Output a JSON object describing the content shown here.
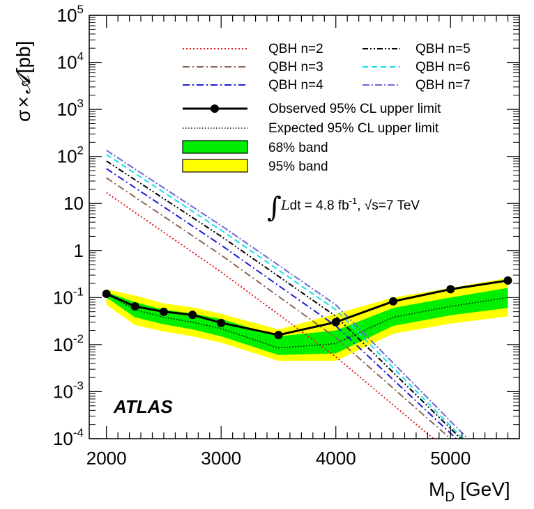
{
  "chart_data": {
    "type": "line",
    "x_label": "M",
    "x_label_sub": "D",
    "x_label_unit": "[GeV]",
    "y_label_sigma": "σ",
    "y_label_times": "×",
    "y_label_A": "𝓐",
    "y_label_unit": "[pb]",
    "y_scale": "log",
    "xlim": [
      1850,
      5600
    ],
    "ylim": [
      0.0001,
      100000
    ],
    "x_ticks": [
      {
        "value": 2000,
        "label": "2000"
      },
      {
        "value": 3000,
        "label": "3000"
      },
      {
        "value": 4000,
        "label": "4000"
      },
      {
        "value": 5000,
        "label": "5000"
      }
    ],
    "y_ticks": [
      {
        "value": 100000,
        "base": "10",
        "exp": "5"
      },
      {
        "value": 10000,
        "base": "10",
        "exp": "4"
      },
      {
        "value": 1000,
        "base": "10",
        "exp": "3"
      },
      {
        "value": 100,
        "base": "10",
        "exp": "2"
      },
      {
        "value": 10,
        "base": "10",
        "exp": ""
      },
      {
        "value": 1,
        "base": "1",
        "exp": ""
      },
      {
        "value": 0.1,
        "base": "10",
        "exp": "-1"
      },
      {
        "value": 0.01,
        "base": "10",
        "exp": "-2"
      },
      {
        "value": 0.001,
        "base": "10",
        "exp": "-3"
      },
      {
        "value": 0.0001,
        "base": "10",
        "exp": "-4"
      }
    ],
    "limit_x": [
      2000,
      2250,
      2500,
      2750,
      3000,
      3500,
      4000,
      4500,
      5000,
      5500
    ],
    "observed": [
      0.12,
      0.065,
      0.05,
      0.043,
      0.029,
      0.016,
      0.03,
      0.083,
      0.15,
      0.23
    ],
    "expected": [
      0.12,
      0.055,
      0.038,
      0.03,
      0.022,
      0.0085,
      0.0105,
      0.038,
      0.065,
      0.1
    ],
    "band68_low": [
      0.1,
      0.038,
      0.027,
      0.021,
      0.015,
      0.006,
      0.0065,
      0.025,
      0.042,
      0.06
    ],
    "band68_high": [
      0.13,
      0.08,
      0.055,
      0.046,
      0.035,
      0.015,
      0.02,
      0.06,
      0.1,
      0.16
    ],
    "band95_low": [
      0.07,
      0.026,
      0.019,
      0.015,
      0.011,
      0.0045,
      0.0045,
      0.017,
      0.028,
      0.04
    ],
    "band95_high": [
      0.15,
      0.11,
      0.075,
      0.062,
      0.045,
      0.021,
      0.045,
      0.1,
      0.16,
      0.26
    ],
    "qbh_series": [
      {
        "name": "QBH n=2",
        "color": "#e8141c",
        "dash": "2,3",
        "x": [
          2000,
          3000,
          4000,
          4850
        ],
        "values": [
          17,
          0.35,
          0.0055,
          0.0001
        ]
      },
      {
        "name": "QBH n=3",
        "color": "#8b6552",
        "dash": "10,4,2,4",
        "x": [
          2000,
          3000,
          4000,
          5000
        ],
        "values": [
          35,
          0.8,
          0.014,
          0.0001
        ]
      },
      {
        "name": "QBH n=4",
        "color": "#1a1adc",
        "dash": "10,4,2,4",
        "x": [
          2000,
          3000,
          4000,
          5050
        ],
        "values": [
          55,
          1.3,
          0.025,
          0.0001
        ]
      },
      {
        "name": "QBH n=5",
        "color": "#000000",
        "dash": "8,3,2,3,2,3",
        "x": [
          2000,
          3000,
          4000,
          5090
        ],
        "values": [
          80,
          2.0,
          0.04,
          0.0001
        ]
      },
      {
        "name": "QBH n=6",
        "color": "#14e0e8",
        "dash": "8,5",
        "x": [
          2000,
          3000,
          4000,
          5110
        ],
        "values": [
          110,
          2.7,
          0.055,
          0.0001
        ]
      },
      {
        "name": "QBH n=7",
        "color": "#6a6ad8",
        "dash": "10,3,2,3",
        "x": [
          2000,
          3000,
          4000,
          5150
        ],
        "values": [
          135,
          3.4,
          0.07,
          0.0001
        ]
      }
    ],
    "legend": {
      "observed": "Observed 95% CL upper limit",
      "expected": "Expected 95% CL upper limit",
      "band68": "68% band",
      "band95": "95% band"
    },
    "colors": {
      "band68": "#00ee00",
      "band95": "#ffff00"
    },
    "annotation": {
      "lumi_prefix": "dt = 4.8 fb",
      "lumi_exp": "-1",
      "lumi_mid": ", √s=7 TeV",
      "atlas_label": "ATLAS"
    }
  }
}
